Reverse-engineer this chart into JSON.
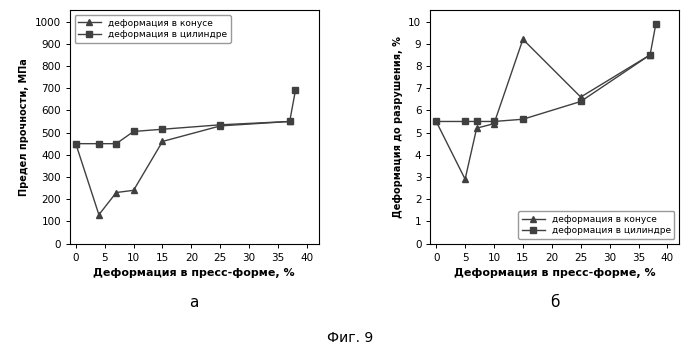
{
  "left": {
    "cone_x": [
      0,
      4,
      7,
      10,
      15,
      25,
      37
    ],
    "cone_y": [
      450,
      130,
      230,
      240,
      460,
      530,
      550
    ],
    "cyl_x": [
      0,
      4,
      7,
      10,
      15,
      25,
      37,
      38
    ],
    "cyl_y": [
      450,
      450,
      450,
      505,
      515,
      535,
      550,
      690
    ],
    "ylabel": "Предел прочности, МПа",
    "xlabel": "Деформация в пресс-форме, %",
    "ylim": [
      0,
      1050
    ],
    "xlim": [
      -1,
      42
    ],
    "yticks": [
      0,
      100,
      200,
      300,
      400,
      500,
      600,
      700,
      800,
      900,
      1000
    ],
    "xticks": [
      0,
      5,
      10,
      15,
      20,
      25,
      30,
      35,
      40
    ],
    "legend_loc": "upper left",
    "sublabel": "a"
  },
  "right": {
    "cone_x": [
      0,
      5,
      7,
      10,
      15,
      25,
      37
    ],
    "cone_y": [
      5.5,
      2.9,
      5.2,
      5.4,
      9.2,
      6.6,
      8.5
    ],
    "cyl_x": [
      0,
      5,
      7,
      10,
      15,
      25,
      37,
      38
    ],
    "cyl_y": [
      5.5,
      5.5,
      5.5,
      5.5,
      5.6,
      6.4,
      8.5,
      9.9
    ],
    "ylabel": "Деформация до разрушения, %",
    "xlabel": "Деформация в пресс-форме, %",
    "ylim": [
      0,
      10.5
    ],
    "xlim": [
      -1,
      42
    ],
    "yticks": [
      0,
      1,
      2,
      3,
      4,
      5,
      6,
      7,
      8,
      9,
      10
    ],
    "xticks": [
      0,
      5,
      10,
      15,
      20,
      25,
      30,
      35,
      40
    ],
    "legend_loc": "lower right",
    "sublabel": "б"
  },
  "legend_cone": "деформация в конусе",
  "legend_cyl": "деформация в цилиндре",
  "fig_label": "Фиг. 9",
  "line_color": "#404040",
  "bg_color": "#ffffff",
  "figsize": [
    7.0,
    3.48
  ],
  "dpi": 100
}
